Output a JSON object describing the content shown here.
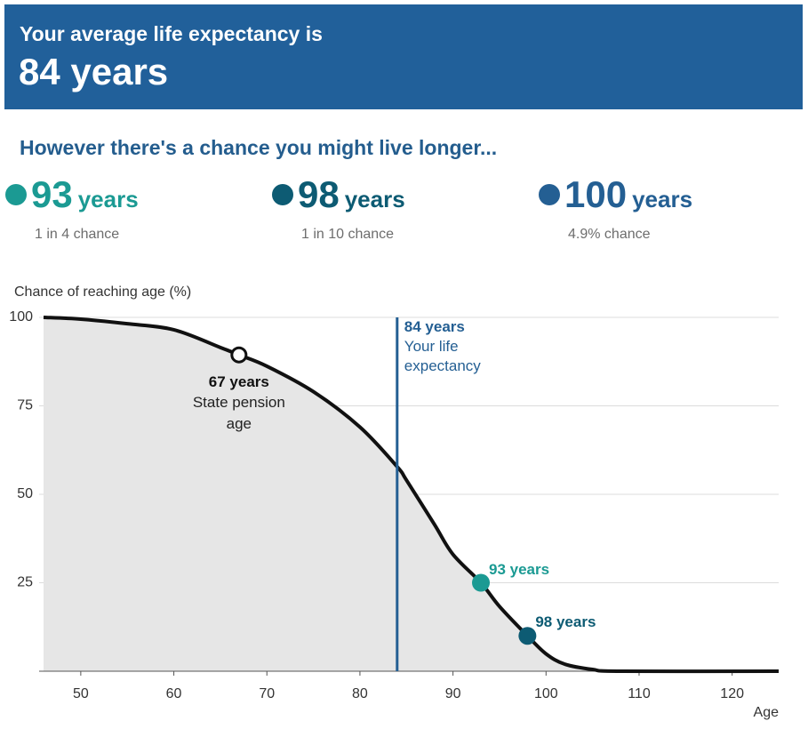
{
  "header": {
    "title": "Your average life expectancy is",
    "value": "84 years"
  },
  "subtitle": "However there's a chance you might live longer...",
  "stats": [
    {
      "value": "93",
      "unit": "years",
      "chance": "1 in 4 chance",
      "color": "#1b9a93"
    },
    {
      "value": "98",
      "unit": "years",
      "chance": "1 in 10 chance",
      "color": "#0d5b73"
    },
    {
      "value": "100",
      "unit": "years",
      "chance": "4.9% chance",
      "color": "#245f93"
    }
  ],
  "chart_data": {
    "type": "line",
    "ylabel": "Chance of reaching age (%)",
    "xlabel": "Age",
    "x": [
      46,
      50,
      55,
      60,
      65,
      67,
      70,
      75,
      80,
      84,
      85,
      88,
      90,
      93,
      95,
      98,
      100,
      102,
      105,
      108,
      125
    ],
    "values": [
      100,
      99.5,
      98.2,
      96.5,
      91.5,
      89.4,
      86.2,
      79,
      69,
      57.8,
      54,
      41.5,
      33,
      25,
      18.3,
      10,
      4.9,
      2,
      0.5,
      0,
      0
    ],
    "color": "#111111",
    "fill": "#e6e6e6",
    "xlim": [
      46,
      125
    ],
    "xticks": [
      50,
      60,
      70,
      80,
      90,
      100,
      110,
      120
    ],
    "ylim": [
      0,
      100
    ],
    "yticks": [
      25,
      50,
      75,
      100
    ],
    "grid": true,
    "vline": {
      "x": 84,
      "label": "84 years",
      "text": "Your life expectancy",
      "color": "#245f93"
    },
    "annotations": [
      {
        "x": 67,
        "y": 89.4,
        "label": "67 years",
        "note": "State pension age"
      },
      {
        "x": 93,
        "y": 25,
        "label": "93 years",
        "color": "#1b9a93"
      },
      {
        "x": 98,
        "y": 10,
        "label": "98 years",
        "color": "#0d5b73"
      }
    ]
  }
}
